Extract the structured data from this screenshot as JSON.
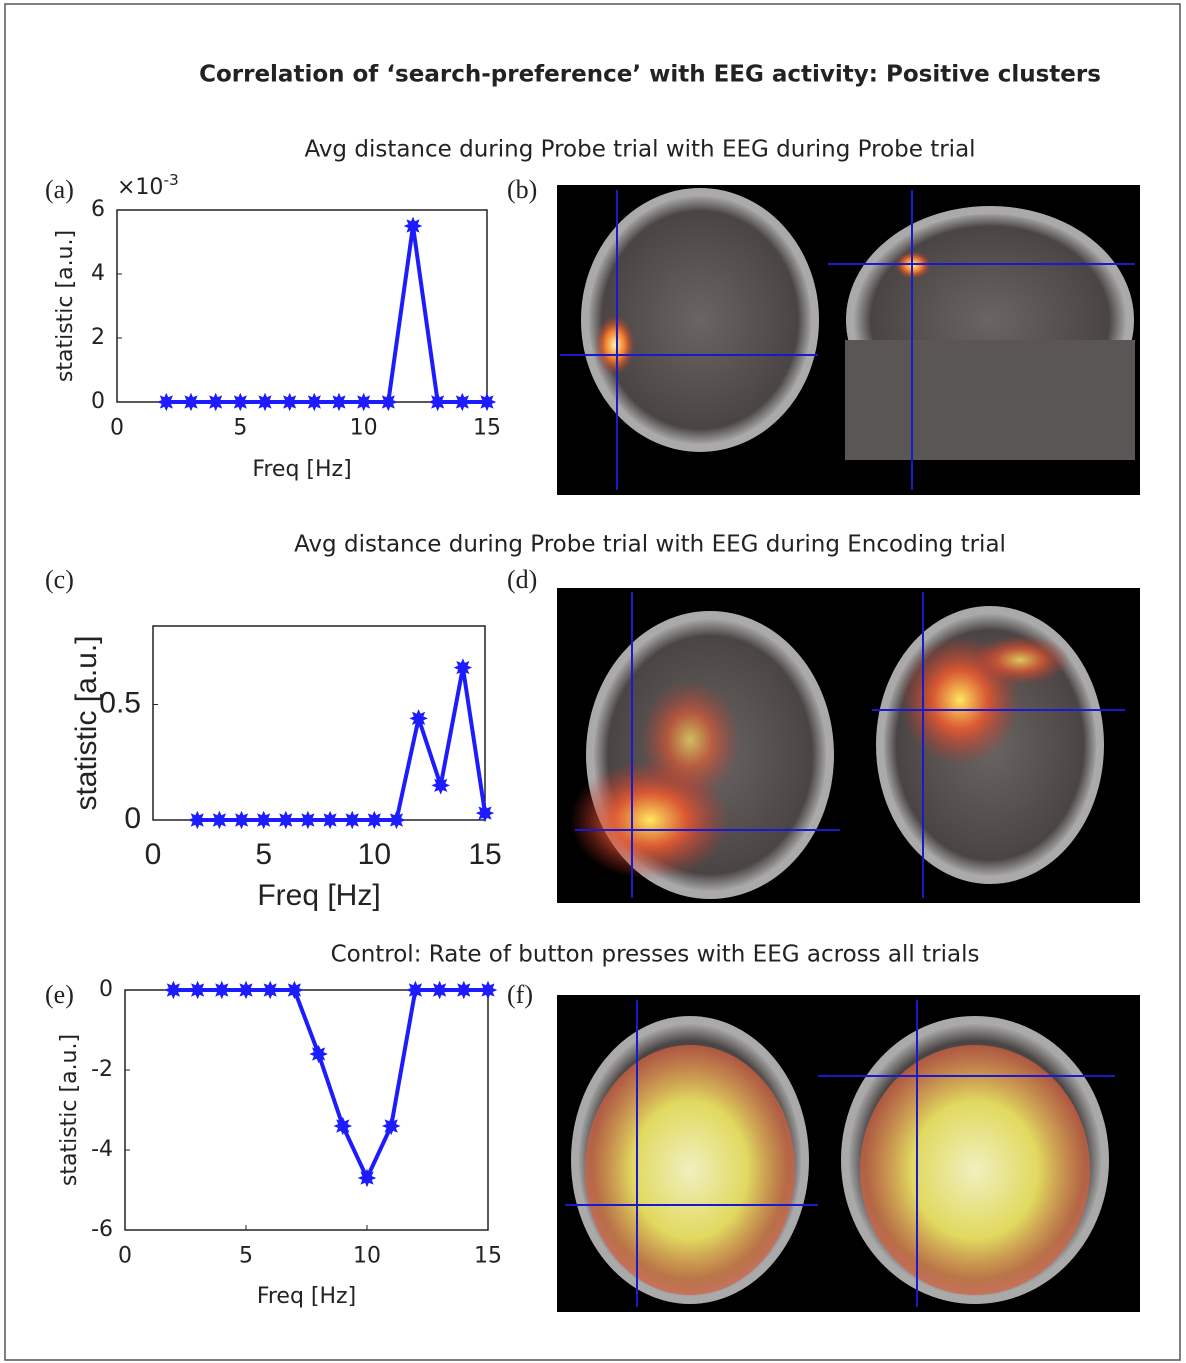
{
  "title": "Correlation of ‘search-preference’ with EEG activity: Positive clusters",
  "subtitles": [
    "Avg distance during Probe trial with EEG during Probe trial",
    "Avg distance during Probe trial with EEG during Encoding trial",
    "Control: Rate of button presses with EEG across all trials"
  ],
  "panel_labels": [
    "(a)",
    "(b)",
    "(c)",
    "(d)",
    "(e)",
    "(f)"
  ],
  "chart_data": [
    {
      "type": "line",
      "xlabel": "Freq [Hz]",
      "ylabel": "statistic [a.u.]",
      "x": [
        2,
        3,
        4,
        5,
        6,
        7,
        8,
        9,
        10,
        11,
        12,
        13,
        14,
        15
      ],
      "values": [
        0,
        0,
        0,
        0,
        0,
        0,
        0,
        0,
        0,
        0,
        5.5,
        0,
        0,
        0
      ],
      "color": "#1c1cff",
      "xlim": [
        0,
        15
      ],
      "xticks": [
        0,
        5,
        10,
        15
      ],
      "ylim": [
        0,
        6
      ],
      "yticks": [
        0,
        2,
        4,
        6
      ],
      "y_multiplier_base": "×10",
      "y_multiplier_exponent": "-3"
    },
    {
      "type": "line",
      "xlabel": "Freq [Hz]",
      "ylabel": "statistic [a.u.]",
      "x": [
        2,
        3,
        4,
        5,
        6,
        7,
        8,
        9,
        10,
        11,
        12,
        13,
        14,
        15
      ],
      "values": [
        0,
        0,
        0,
        0,
        0,
        0,
        0,
        0,
        0,
        0,
        0.44,
        0.15,
        0.66,
        0.03
      ],
      "color": "#1c1cff",
      "xlim": [
        0,
        15
      ],
      "xticks": [
        0,
        5,
        10,
        15
      ],
      "ylim": [
        0,
        0.84
      ],
      "yticks": [
        0,
        0.5
      ]
    },
    {
      "type": "line",
      "xlabel": "Freq [Hz]",
      "ylabel": "statistic [a.u.]",
      "x": [
        2,
        3,
        4,
        5,
        6,
        7,
        8,
        9,
        10,
        11,
        12,
        13,
        14,
        15
      ],
      "values": [
        0,
        0,
        0,
        0,
        0,
        0,
        -1.6,
        -3.4,
        -4.7,
        -3.4,
        0,
        0,
        0,
        0
      ],
      "color": "#1c1cff",
      "xlim": [
        0,
        15
      ],
      "xticks": [
        0,
        5,
        10,
        15
      ],
      "ylim": [
        -6,
        0
      ],
      "yticks": [
        -6,
        -4,
        -2,
        0
      ]
    }
  ]
}
